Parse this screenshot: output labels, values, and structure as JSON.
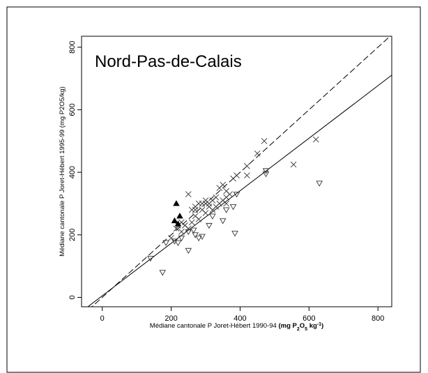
{
  "chart_data": {
    "type": "scatter",
    "title": "Nord-Pas-de-Calais",
    "y_label": "Médiane cantonale P Joret-Hébert 1995-99 (mg P2O5/kg)",
    "x_label": [
      "Médiane cantonale P Joret-Hébert 1990-94 ",
      "(mg P",
      "2",
      "O",
      "5",
      " kg",
      "-1",
      ")"
    ],
    "xlim": [
      -60,
      840
    ],
    "ylim": [
      -30,
      835
    ],
    "xticks": [
      0,
      200,
      400,
      600,
      800
    ],
    "yticks": [
      0,
      200,
      400,
      600,
      800
    ],
    "lines": [
      {
        "slope": 1,
        "intercept": 0,
        "dash": true
      },
      {
        "slope": 0.84,
        "intercept": 5,
        "dash": false
      }
    ],
    "series": [
      {
        "marker": "cross",
        "color": "#333333",
        "x": [
          200,
          215,
          230,
          250,
          260,
          270,
          280,
          290,
          300,
          310,
          320,
          330,
          340,
          350,
          360,
          370,
          380,
          390,
          420,
          420,
          450,
          470,
          620,
          555,
          300,
          280,
          260,
          240,
          230,
          320,
          340,
          350,
          360,
          330,
          310,
          290,
          270,
          250,
          220,
          300,
          270,
          360
        ],
        "values": [
          190,
          220,
          240,
          330,
          280,
          290,
          300,
          280,
          300,
          290,
          310,
          320,
          350,
          360,
          340,
          330,
          380,
          390,
          420,
          390,
          460,
          500,
          505,
          425,
          270,
          250,
          240,
          230,
          210,
          280,
          300,
          310,
          300,
          290,
          300,
          300,
          260,
          220,
          230,
          310,
          280,
          320
        ]
      },
      {
        "marker": "triangle-down",
        "color": "#333333",
        "x": [
          140,
          175,
          185,
          210,
          220,
          250,
          250,
          270,
          280,
          290,
          310,
          320,
          350,
          360,
          380,
          390,
          385,
          475,
          475,
          630,
          230,
          265
        ],
        "values": [
          125,
          80,
          175,
          180,
          175,
          150,
          210,
          200,
          190,
          195,
          230,
          260,
          245,
          280,
          290,
          330,
          205,
          405,
          395,
          365,
          190,
          215
        ]
      },
      {
        "marker": "triangle-up",
        "color": "#000000",
        "x": [
          215,
          225,
          210,
          220
        ],
        "values": [
          300,
          260,
          245,
          235
        ]
      }
    ]
  }
}
